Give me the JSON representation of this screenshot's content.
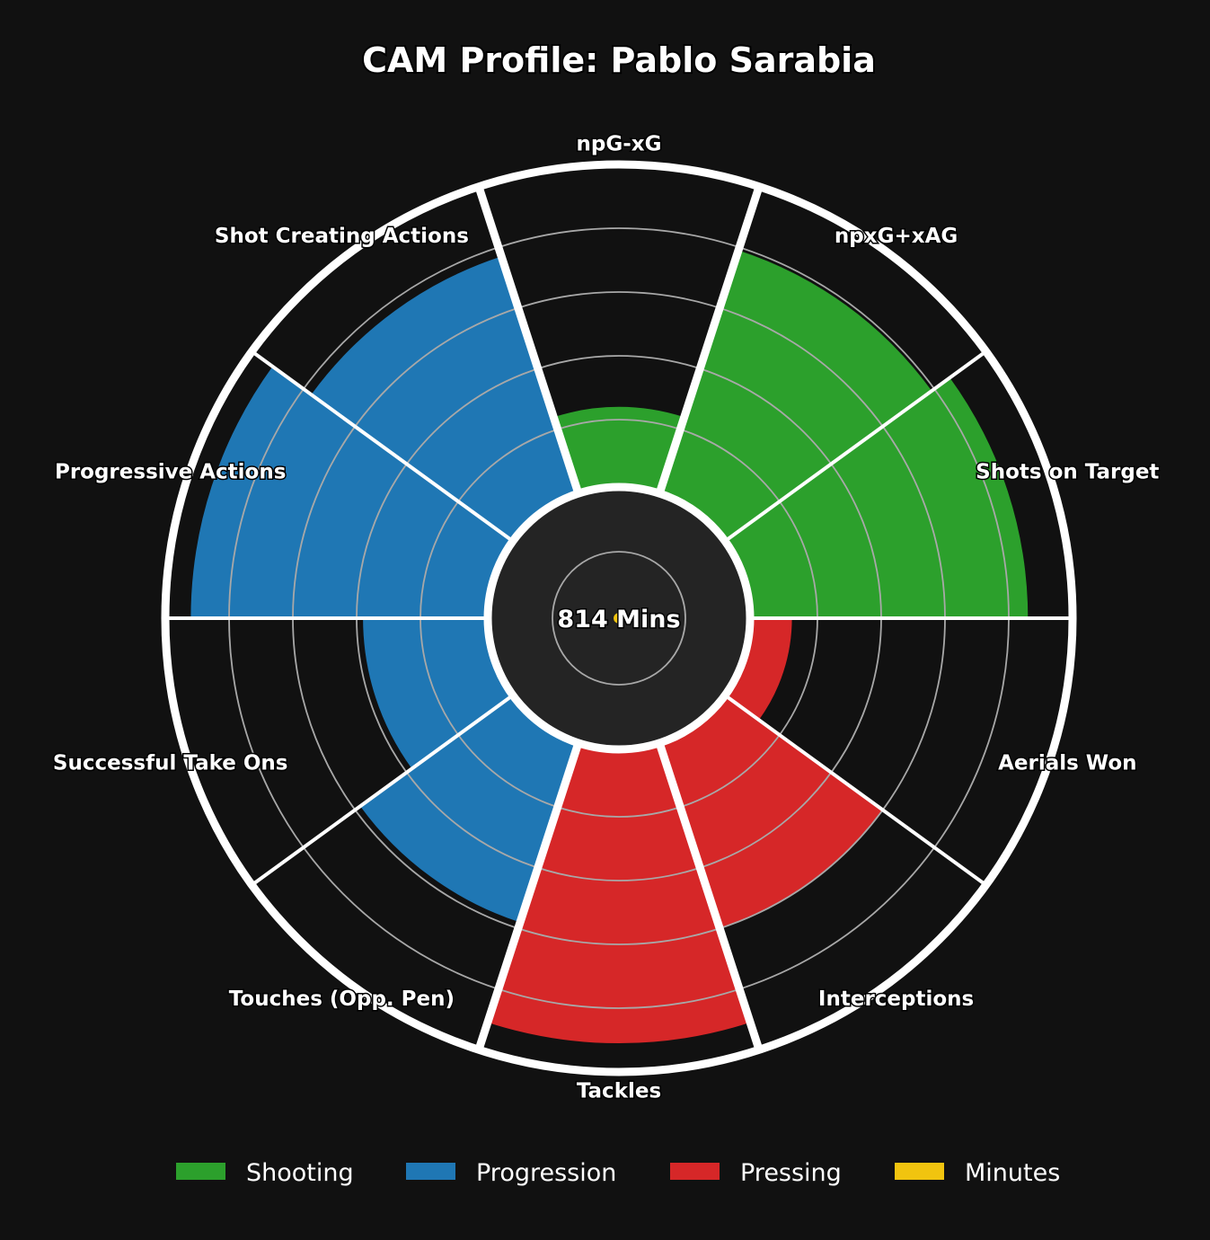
{
  "chart_data": {
    "type": "radial-bar",
    "title": "CAM Profile: Pablo Sarabia",
    "center_label": "814 Mins",
    "minutes_percentile": 2,
    "scale_max": 100,
    "rings": [
      20,
      40,
      60,
      80
    ],
    "categories": [
      {
        "name": "npG-xG",
        "value": 24,
        "group": "Shooting"
      },
      {
        "name": "npxG+xAG",
        "value": 79,
        "group": "Shooting"
      },
      {
        "name": "Shots on Target",
        "value": 86,
        "group": "Shooting"
      },
      {
        "name": "Aerials Won",
        "value": 12,
        "group": "Pressing"
      },
      {
        "name": "Interceptions",
        "value": 60,
        "group": "Pressing"
      },
      {
        "name": "Tackles",
        "value": 91,
        "group": "Pressing"
      },
      {
        "name": "Touches (Opp. Pen)",
        "value": 58,
        "group": "Progression"
      },
      {
        "name": "Successful Take Ons",
        "value": 38,
        "group": "Progression"
      },
      {
        "name": "Progressive Actions",
        "value": 92,
        "group": "Progression"
      },
      {
        "name": "Shot Creating Actions",
        "value": 77,
        "group": "Progression"
      }
    ],
    "legend": [
      {
        "name": "Shooting",
        "color": "#2ca02c"
      },
      {
        "name": "Progression",
        "color": "#1f77b4"
      },
      {
        "name": "Pressing",
        "color": "#d62728"
      },
      {
        "name": "Minutes",
        "color": "#f1c40f"
      }
    ],
    "legend_position": "bottom"
  }
}
